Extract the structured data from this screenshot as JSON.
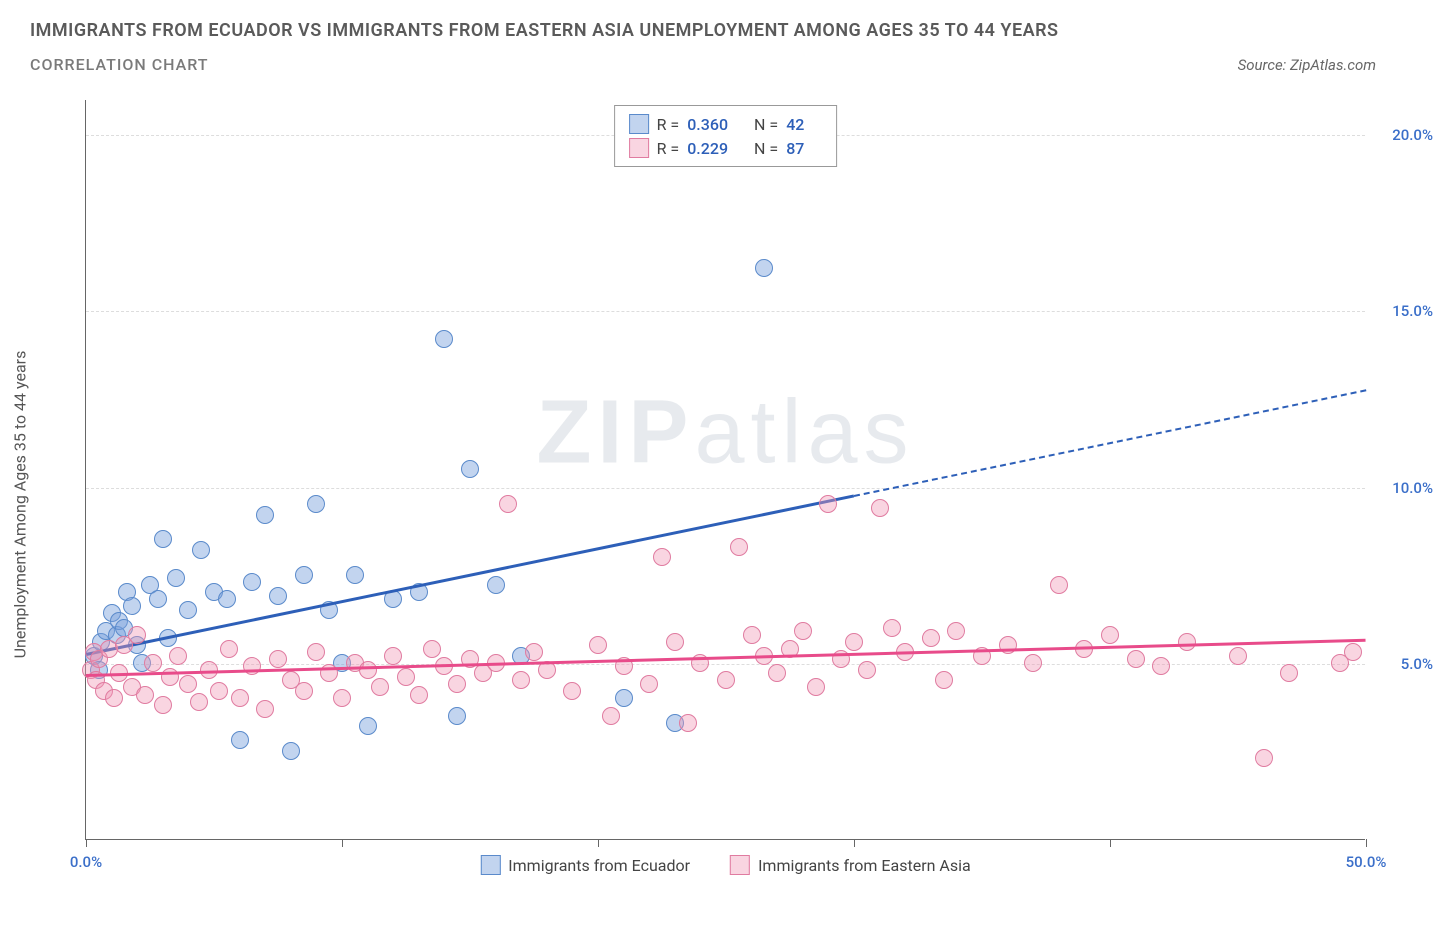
{
  "title": "IMMIGRANTS FROM ECUADOR VS IMMIGRANTS FROM EASTERN ASIA UNEMPLOYMENT AMONG AGES 35 TO 44 YEARS",
  "subtitle": "CORRELATION CHART",
  "source_prefix": "Source: ",
  "source_name": "ZipAtlas.com",
  "watermark_bold": "ZIP",
  "watermark_light": "atlas",
  "y_axis_label": "Unemployment Among Ages 35 to 44 years",
  "chart": {
    "type": "scatter",
    "xlim": [
      0,
      50
    ],
    "ylim": [
      0,
      21
    ],
    "y_ticks": [
      5,
      10,
      15,
      20
    ],
    "y_tick_labels": [
      "5.0%",
      "10.0%",
      "15.0%",
      "20.0%"
    ],
    "x_ticks": [
      0,
      10,
      20,
      30,
      40,
      50
    ],
    "x_tick_labels_shown": {
      "0": "0.0%",
      "50": "50.0%"
    },
    "grid_color": "#dddddd",
    "axis_color": "#666666",
    "y_label_color": "#3b6fc9",
    "x_label_color": "#3b6fc9",
    "background": "#ffffff",
    "point_radius": 9,
    "point_stroke_width": 1.2
  },
  "series": [
    {
      "id": "ecuador",
      "label": "Immigrants from Ecuador",
      "fill": "rgba(120,160,220,0.45)",
      "stroke": "#5a8acb",
      "trend_color": "#2d5fb8",
      "R": "0.360",
      "N": "42",
      "trend": {
        "x0": 0,
        "y0": 5.3,
        "x1_solid": 30,
        "y1_solid": 9.8,
        "x1_dash": 50,
        "y1_dash": 12.8
      },
      "points": [
        [
          0.3,
          5.2
        ],
        [
          0.5,
          4.8
        ],
        [
          0.6,
          5.6
        ],
        [
          0.8,
          5.9
        ],
        [
          1.0,
          6.4
        ],
        [
          1.2,
          5.8
        ],
        [
          1.3,
          6.2
        ],
        [
          1.5,
          6.0
        ],
        [
          1.6,
          7.0
        ],
        [
          1.8,
          6.6
        ],
        [
          2.0,
          5.5
        ],
        [
          2.2,
          5.0
        ],
        [
          2.5,
          7.2
        ],
        [
          2.8,
          6.8
        ],
        [
          3.0,
          8.5
        ],
        [
          3.2,
          5.7
        ],
        [
          3.5,
          7.4
        ],
        [
          4.0,
          6.5
        ],
        [
          4.5,
          8.2
        ],
        [
          5.0,
          7.0
        ],
        [
          5.5,
          6.8
        ],
        [
          6.0,
          2.8
        ],
        [
          6.5,
          7.3
        ],
        [
          7.0,
          9.2
        ],
        [
          7.5,
          6.9
        ],
        [
          8.0,
          2.5
        ],
        [
          8.5,
          7.5
        ],
        [
          9.0,
          9.5
        ],
        [
          9.5,
          6.5
        ],
        [
          10.0,
          5.0
        ],
        [
          10.5,
          7.5
        ],
        [
          11.0,
          3.2
        ],
        [
          12.0,
          6.8
        ],
        [
          13.0,
          7.0
        ],
        [
          14.0,
          14.2
        ],
        [
          14.5,
          3.5
        ],
        [
          15.0,
          10.5
        ],
        [
          16.0,
          7.2
        ],
        [
          17.0,
          5.2
        ],
        [
          21.0,
          4.0
        ],
        [
          23.0,
          3.3
        ],
        [
          26.5,
          16.2
        ]
      ]
    },
    {
      "id": "eastern_asia",
      "label": "Immigrants from Eastern Asia",
      "fill": "rgba(240,150,180,0.40)",
      "stroke": "#e07ba0",
      "trend_color": "#e84b8a",
      "R": "0.229",
      "N": "87",
      "trend": {
        "x0": 0,
        "y0": 4.7,
        "x1_solid": 50,
        "y1_solid": 5.7,
        "x1_dash": 50,
        "y1_dash": 5.7
      },
      "points": [
        [
          0.2,
          4.8
        ],
        [
          0.3,
          5.3
        ],
        [
          0.4,
          4.5
        ],
        [
          0.5,
          5.1
        ],
        [
          0.7,
          4.2
        ],
        [
          0.9,
          5.4
        ],
        [
          1.1,
          4.0
        ],
        [
          1.3,
          4.7
        ],
        [
          1.5,
          5.5
        ],
        [
          1.8,
          4.3
        ],
        [
          2.0,
          5.8
        ],
        [
          2.3,
          4.1
        ],
        [
          2.6,
          5.0
        ],
        [
          3.0,
          3.8
        ],
        [
          3.3,
          4.6
        ],
        [
          3.6,
          5.2
        ],
        [
          4.0,
          4.4
        ],
        [
          4.4,
          3.9
        ],
        [
          4.8,
          4.8
        ],
        [
          5.2,
          4.2
        ],
        [
          5.6,
          5.4
        ],
        [
          6.0,
          4.0
        ],
        [
          6.5,
          4.9
        ],
        [
          7.0,
          3.7
        ],
        [
          7.5,
          5.1
        ],
        [
          8.0,
          4.5
        ],
        [
          8.5,
          4.2
        ],
        [
          9.0,
          5.3
        ],
        [
          9.5,
          4.7
        ],
        [
          10.0,
          4.0
        ],
        [
          10.5,
          5.0
        ],
        [
          11.0,
          4.8
        ],
        [
          11.5,
          4.3
        ],
        [
          12.0,
          5.2
        ],
        [
          12.5,
          4.6
        ],
        [
          13.0,
          4.1
        ],
        [
          13.5,
          5.4
        ],
        [
          14.0,
          4.9
        ],
        [
          14.5,
          4.4
        ],
        [
          15.0,
          5.1
        ],
        [
          15.5,
          4.7
        ],
        [
          16.0,
          5.0
        ],
        [
          16.5,
          9.5
        ],
        [
          17.0,
          4.5
        ],
        [
          17.5,
          5.3
        ],
        [
          18.0,
          4.8
        ],
        [
          19.0,
          4.2
        ],
        [
          20.0,
          5.5
        ],
        [
          20.5,
          3.5
        ],
        [
          21.0,
          4.9
        ],
        [
          22.0,
          4.4
        ],
        [
          22.5,
          8.0
        ],
        [
          23.0,
          5.6
        ],
        [
          23.5,
          3.3
        ],
        [
          24.0,
          5.0
        ],
        [
          25.0,
          4.5
        ],
        [
          25.5,
          8.3
        ],
        [
          26.0,
          5.8
        ],
        [
          26.5,
          5.2
        ],
        [
          27.0,
          4.7
        ],
        [
          27.5,
          5.4
        ],
        [
          28.0,
          5.9
        ],
        [
          28.5,
          4.3
        ],
        [
          29.0,
          9.5
        ],
        [
          29.5,
          5.1
        ],
        [
          30.0,
          5.6
        ],
        [
          30.5,
          4.8
        ],
        [
          31.0,
          9.4
        ],
        [
          31.5,
          6.0
        ],
        [
          32.0,
          5.3
        ],
        [
          33.0,
          5.7
        ],
        [
          33.5,
          4.5
        ],
        [
          34.0,
          5.9
        ],
        [
          35.0,
          5.2
        ],
        [
          36.0,
          5.5
        ],
        [
          37.0,
          5.0
        ],
        [
          38.0,
          7.2
        ],
        [
          39.0,
          5.4
        ],
        [
          40.0,
          5.8
        ],
        [
          41.0,
          5.1
        ],
        [
          42.0,
          4.9
        ],
        [
          43.0,
          5.6
        ],
        [
          45.0,
          5.2
        ],
        [
          46.0,
          2.3
        ],
        [
          47.0,
          4.7
        ],
        [
          49.0,
          5.0
        ],
        [
          49.5,
          5.3
        ]
      ]
    }
  ],
  "stats_legend": {
    "R_label": "R =",
    "N_label": "N ="
  },
  "bottom_legend_labels": [
    "Immigrants from Ecuador",
    "Immigrants from Eastern Asia"
  ]
}
